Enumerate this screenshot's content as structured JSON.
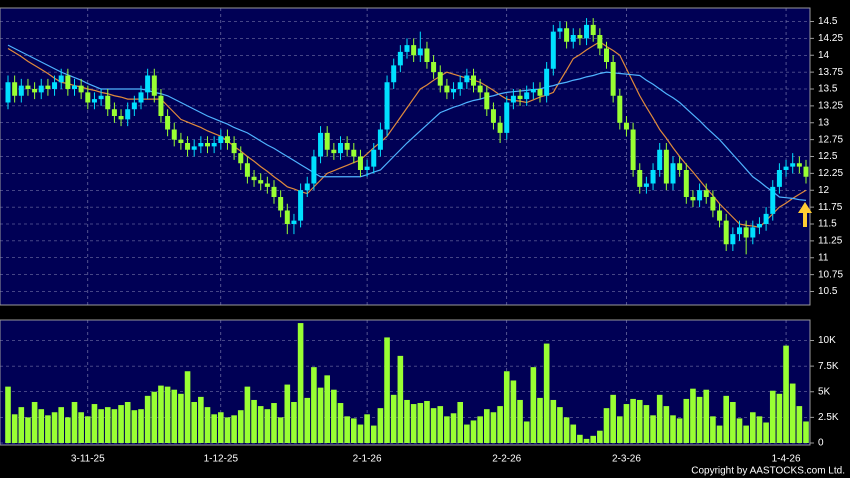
{
  "chart_data": [
    {
      "type": "candlestick",
      "up_color": "#00e0ff",
      "down_color": "#99ff33",
      "grid": true,
      "ylim": [
        10.3,
        14.7
      ],
      "yticks": [
        10.5,
        10.75,
        11,
        11.25,
        11.5,
        11.75,
        12,
        12.25,
        12.5,
        12.75,
        13,
        13.25,
        13.5,
        13.75,
        14,
        14.25,
        14.5
      ],
      "open": [
        13.3,
        13.6,
        13.4,
        13.55,
        13.5,
        13.45,
        13.55,
        13.5,
        13.6,
        13.7,
        13.5,
        13.55,
        13.45,
        13.3,
        13.35,
        13.4,
        13.2,
        13.1,
        13.05,
        13.2,
        13.3,
        13.45,
        13.7,
        13.4,
        13.1,
        12.9,
        12.75,
        12.7,
        12.6,
        12.65,
        12.7,
        12.65,
        12.7,
        12.8,
        12.7,
        12.55,
        12.4,
        12.2,
        12.15,
        12.1,
        12.05,
        11.9,
        11.7,
        11.5,
        11.55,
        12.0,
        12.1,
        12.5,
        12.85,
        12.6,
        12.55,
        12.7,
        12.6,
        12.5,
        12.3,
        12.35,
        12.6,
        12.9,
        13.6,
        13.85,
        14.05,
        14.15,
        14.0,
        14.1,
        13.9,
        13.75,
        13.55,
        13.45,
        13.5,
        13.6,
        13.7,
        13.55,
        13.45,
        13.2,
        13.0,
        12.85,
        13.3,
        13.4,
        13.35,
        13.45,
        13.5,
        13.4,
        13.8,
        14.35,
        14.4,
        14.2,
        14.3,
        14.25,
        14.45,
        14.3,
        14.1,
        13.9,
        13.4,
        13.0,
        12.9,
        12.3,
        12.05,
        12.1,
        12.3,
        12.6,
        12.1,
        12.4,
        12.3,
        11.9,
        11.85,
        12.0,
        11.9,
        11.7,
        11.55,
        11.2,
        11.35,
        11.45,
        11.3,
        11.45,
        11.5,
        11.65,
        12.05,
        12.3,
        12.35,
        12.4,
        12.35
      ],
      "high": [
        13.7,
        13.7,
        13.65,
        13.65,
        13.6,
        13.65,
        13.65,
        13.7,
        13.8,
        13.8,
        13.65,
        13.65,
        13.55,
        13.45,
        13.5,
        13.5,
        13.3,
        13.2,
        13.3,
        13.4,
        13.55,
        13.8,
        13.8,
        13.5,
        13.2,
        13.0,
        12.85,
        12.8,
        12.75,
        12.8,
        12.8,
        12.8,
        12.9,
        12.9,
        12.8,
        12.65,
        12.5,
        12.3,
        12.25,
        12.2,
        12.15,
        12.0,
        11.8,
        11.65,
        12.1,
        12.2,
        12.6,
        12.95,
        12.95,
        12.7,
        12.8,
        12.8,
        12.7,
        12.6,
        12.45,
        12.7,
        13.0,
        13.7,
        13.95,
        14.15,
        14.25,
        14.25,
        14.35,
        14.2,
        14.0,
        13.85,
        13.65,
        13.6,
        13.7,
        13.8,
        13.8,
        13.65,
        13.55,
        13.3,
        13.1,
        13.4,
        13.5,
        13.5,
        13.55,
        13.6,
        13.6,
        13.9,
        14.45,
        14.5,
        14.5,
        14.4,
        14.4,
        14.55,
        14.55,
        14.4,
        14.2,
        14.0,
        13.5,
        13.1,
        13.0,
        12.4,
        12.2,
        12.4,
        12.7,
        12.7,
        12.5,
        12.5,
        12.4,
        12.0,
        12.1,
        12.1,
        12.0,
        11.8,
        11.65,
        11.45,
        11.55,
        11.55,
        11.55,
        11.6,
        11.75,
        12.15,
        12.4,
        12.45,
        12.55,
        12.5,
        12.45
      ],
      "low": [
        13.2,
        13.3,
        13.3,
        13.4,
        13.35,
        13.35,
        13.4,
        13.4,
        13.5,
        13.4,
        13.4,
        13.35,
        13.2,
        13.2,
        13.25,
        13.1,
        13.0,
        12.95,
        12.95,
        13.1,
        13.2,
        13.35,
        13.3,
        13.0,
        12.8,
        12.65,
        12.6,
        12.5,
        12.5,
        12.55,
        12.55,
        12.55,
        12.6,
        12.6,
        12.45,
        12.3,
        12.1,
        12.05,
        12.0,
        11.95,
        11.8,
        11.6,
        11.35,
        11.35,
        11.45,
        11.9,
        12.0,
        12.4,
        12.5,
        12.45,
        12.45,
        12.5,
        12.4,
        12.2,
        12.2,
        12.25,
        12.5,
        12.8,
        13.5,
        13.75,
        13.95,
        13.9,
        13.9,
        13.8,
        13.65,
        13.45,
        13.35,
        13.35,
        13.4,
        13.5,
        13.45,
        13.35,
        13.1,
        12.9,
        12.7,
        12.75,
        13.2,
        13.25,
        13.25,
        13.35,
        13.3,
        13.3,
        13.7,
        14.25,
        14.1,
        14.1,
        14.15,
        14.15,
        14.2,
        14.0,
        13.8,
        13.3,
        12.9,
        12.8,
        12.2,
        11.95,
        11.95,
        12.0,
        12.2,
        12.0,
        12.0,
        12.2,
        11.8,
        11.75,
        11.75,
        11.8,
        11.6,
        11.45,
        11.1,
        11.1,
        11.25,
        11.05,
        11.2,
        11.35,
        11.4,
        11.55,
        11.95,
        12.2,
        12.25,
        12.25,
        12.1
      ],
      "close": [
        13.6,
        13.4,
        13.55,
        13.5,
        13.45,
        13.55,
        13.5,
        13.6,
        13.7,
        13.5,
        13.55,
        13.45,
        13.3,
        13.35,
        13.4,
        13.2,
        13.1,
        13.05,
        13.2,
        13.3,
        13.45,
        13.7,
        13.4,
        13.1,
        12.9,
        12.75,
        12.7,
        12.6,
        12.65,
        12.7,
        12.65,
        12.7,
        12.8,
        12.7,
        12.55,
        12.4,
        12.2,
        12.15,
        12.1,
        12.05,
        11.9,
        11.7,
        11.5,
        11.55,
        12.0,
        12.1,
        12.5,
        12.85,
        12.6,
        12.55,
        12.7,
        12.6,
        12.5,
        12.3,
        12.35,
        12.6,
        12.9,
        13.6,
        13.85,
        14.05,
        14.15,
        14.0,
        14.1,
        13.9,
        13.75,
        13.55,
        13.45,
        13.5,
        13.6,
        13.7,
        13.55,
        13.45,
        13.2,
        13.0,
        12.85,
        13.3,
        13.4,
        13.35,
        13.45,
        13.5,
        13.4,
        13.8,
        14.35,
        14.4,
        14.2,
        14.3,
        14.25,
        14.45,
        14.3,
        14.1,
        13.9,
        13.4,
        13.0,
        12.9,
        12.3,
        12.05,
        12.1,
        12.3,
        12.6,
        12.1,
        12.4,
        12.3,
        11.9,
        11.85,
        12.0,
        11.9,
        11.7,
        11.55,
        11.2,
        11.35,
        11.45,
        11.3,
        11.45,
        11.5,
        11.65,
        12.05,
        12.3,
        12.35,
        12.4,
        12.35,
        12.2
      ],
      "series": [
        {
          "color": "#e08a3c",
          "values": [
            14.1,
            14.04,
            13.98,
            13.91,
            13.85,
            13.79,
            13.73,
            13.66,
            13.6,
            13.58,
            13.55,
            13.53,
            13.5,
            13.48,
            13.45,
            13.43,
            13.4,
            13.38,
            13.35,
            13.35,
            13.35,
            13.35,
            13.35,
            13.35,
            13.25,
            13.15,
            13.05,
            13.01,
            12.97,
            12.93,
            12.88,
            12.84,
            12.8,
            12.73,
            12.65,
            12.58,
            12.5,
            12.43,
            12.35,
            12.28,
            12.2,
            12.13,
            12.05,
            12.02,
            11.98,
            11.95,
            12.05,
            12.15,
            12.25,
            12.29,
            12.33,
            12.37,
            12.41,
            12.45,
            12.54,
            12.63,
            12.71,
            12.8,
            12.94,
            13.08,
            13.22,
            13.36,
            13.5,
            13.56,
            13.63,
            13.69,
            13.75,
            13.72,
            13.69,
            13.66,
            13.63,
            13.6,
            13.54,
            13.48,
            13.41,
            13.35,
            13.33,
            13.32,
            13.3,
            13.34,
            13.38,
            13.41,
            13.45,
            13.62,
            13.78,
            13.95,
            14.01,
            14.08,
            14.14,
            14.2,
            14.13,
            14.07,
            14.0,
            13.8,
            13.6,
            13.4,
            13.23,
            13.07,
            12.9,
            12.77,
            12.63,
            12.5,
            12.38,
            12.27,
            12.15,
            12.03,
            11.92,
            11.8,
            11.7,
            11.6,
            11.5,
            11.48,
            11.47,
            11.45,
            11.55,
            11.65,
            11.75,
            11.81,
            11.88,
            11.94,
            12.0
          ]
        },
        {
          "color": "#4fb3ff",
          "values": [
            14.15,
            14.1,
            14.05,
            14.0,
            13.95,
            13.9,
            13.85,
            13.8,
            13.75,
            13.71,
            13.67,
            13.63,
            13.58,
            13.54,
            13.5,
            13.5,
            13.5,
            13.5,
            13.5,
            13.5,
            13.5,
            13.48,
            13.45,
            13.43,
            13.4,
            13.35,
            13.3,
            13.25,
            13.2,
            13.15,
            13.1,
            13.06,
            13.02,
            12.98,
            12.93,
            12.89,
            12.85,
            12.79,
            12.73,
            12.67,
            12.62,
            12.56,
            12.5,
            12.44,
            12.38,
            12.32,
            12.26,
            12.2,
            12.2,
            12.2,
            12.2,
            12.2,
            12.2,
            12.2,
            12.23,
            12.27,
            12.3,
            12.4,
            12.5,
            12.6,
            12.7,
            12.79,
            12.88,
            12.97,
            13.06,
            13.15,
            13.19,
            13.23,
            13.26,
            13.3,
            13.33,
            13.35,
            13.38,
            13.4,
            13.43,
            13.45,
            13.46,
            13.47,
            13.48,
            13.49,
            13.5,
            13.53,
            13.55,
            13.58,
            13.6,
            13.63,
            13.65,
            13.68,
            13.7,
            13.73,
            13.75,
            13.74,
            13.73,
            13.72,
            13.71,
            13.7,
            13.63,
            13.57,
            13.5,
            13.43,
            13.37,
            13.3,
            13.21,
            13.12,
            13.03,
            12.93,
            12.84,
            12.75,
            12.64,
            12.53,
            12.42,
            12.31,
            12.2,
            12.13,
            12.05,
            11.98,
            11.9,
            11.89,
            11.88,
            11.86,
            11.85
          ]
        }
      ]
    },
    {
      "type": "bar",
      "color": "#99ff33",
      "grid": true,
      "ylim": [
        0,
        12000
      ],
      "yticks": [
        0,
        {
          "value": 2500,
          "label": "2.5K"
        },
        {
          "value": 5000,
          "label": "5K"
        },
        {
          "value": 7500,
          "label": "7.5K"
        },
        {
          "value": 10000,
          "label": "10K"
        }
      ],
      "categories": [
        null,
        null,
        null,
        null,
        null,
        null,
        null,
        null,
        null,
        null,
        null,
        null,
        "3-11-25",
        null,
        null,
        null,
        null,
        null,
        null,
        null,
        null,
        null,
        null,
        null,
        null,
        null,
        null,
        null,
        null,
        null,
        null,
        null,
        "1-12-25",
        null,
        null,
        null,
        null,
        null,
        null,
        null,
        null,
        null,
        null,
        null,
        null,
        null,
        null,
        null,
        null,
        null,
        null,
        null,
        null,
        null,
        "2-1-26",
        null,
        null,
        null,
        null,
        null,
        null,
        null,
        null,
        null,
        null,
        null,
        null,
        null,
        null,
        null,
        null,
        null,
        null,
        null,
        null,
        "2-2-26",
        null,
        null,
        null,
        null,
        null,
        null,
        null,
        null,
        null,
        null,
        null,
        null,
        null,
        null,
        null,
        null,
        null,
        "2-3-26",
        null,
        null,
        null,
        null,
        null,
        null,
        null,
        null,
        null,
        null,
        null,
        null,
        null,
        null,
        null,
        null,
        null,
        null,
        null,
        null,
        null,
        null,
        null,
        "1-4-26",
        null,
        null,
        null
      ],
      "values": [
        5500,
        2800,
        3500,
        2500,
        4000,
        3300,
        2700,
        3000,
        3500,
        2500,
        4000,
        3000,
        2600,
        3800,
        3300,
        3500,
        3300,
        3700,
        4000,
        3200,
        3300,
        4600,
        5000,
        5600,
        5500,
        5200,
        4800,
        7000,
        4000,
        4500,
        3500,
        2800,
        3000,
        2500,
        2700,
        3200,
        5500,
        4200,
        3600,
        3300,
        3900,
        2500,
        5700,
        4000,
        11700,
        4400,
        7400,
        5400,
        6600,
        5200,
        3900,
        2600,
        2400,
        1800,
        2800,
        1700,
        3400,
        10300,
        4700,
        8500,
        4200,
        3800,
        3900,
        4100,
        3400,
        3600,
        2600,
        2900,
        4000,
        1800,
        2200,
        2600,
        3300,
        3000,
        3600,
        7000,
        6100,
        4200,
        2100,
        7400,
        4400,
        9700,
        4200,
        3500,
        2500,
        1800,
        800,
        400,
        700,
        1200,
        3400,
        4700,
        2600,
        3800,
        4300,
        4200,
        3700,
        2700,
        4700,
        3600,
        2700,
        2400,
        4300,
        5300,
        4500,
        5200,
        2600,
        1700,
        4600,
        4000,
        2400,
        1700,
        3000,
        2600,
        2000,
        5100,
        4800,
        9500,
        5800,
        3600,
        2100
      ]
    }
  ],
  "footer": "Copyright by AASTOCKS.com Ltd."
}
